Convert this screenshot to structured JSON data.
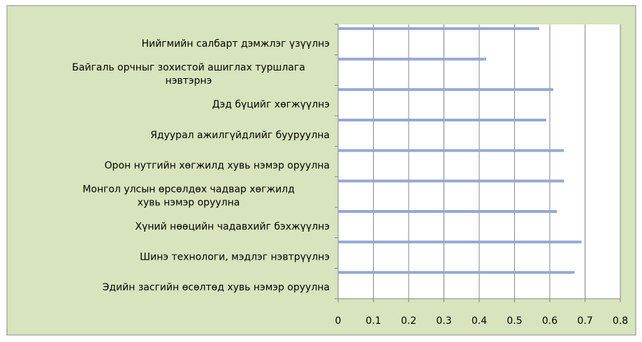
{
  "chart_data": {
    "type": "bar",
    "orientation": "horizontal",
    "categories": [
      "Нийгмийн салбарт дэмжлэг үзүүлнэ",
      "Байгаль орчныг зохистой ашиглах туршлага\nнэвтэрнэ",
      "Дэд бүцийг хөгжүүлнэ",
      "Ядуурал ажилгүйдлийг бууруулна",
      "Орон нутгийн хөгжилд хувь нэмэр оруулна",
      "Монгол улсын өрсөлдөх чадвар хөгжилд\nхувь нэмэр оруулна",
      "Хүний нөөцийн чадавхийг бэхжүүлнэ",
      "Шинэ технологи, мэдлэг нэвтрүүлнэ",
      "Эдийн засгийн өсөлтөд хувь нэмэр оруулна"
    ],
    "values": [
      0.57,
      0.42,
      0.61,
      0.59,
      0.64,
      0.64,
      0.62,
      0.69,
      0.67
    ],
    "color": "#95a8d2",
    "xlim": [
      0,
      0.8
    ],
    "xticks": [
      0,
      0.1,
      0.2,
      0.3,
      0.4,
      0.5,
      0.6,
      0.7,
      0.8
    ],
    "grid": true
  }
}
